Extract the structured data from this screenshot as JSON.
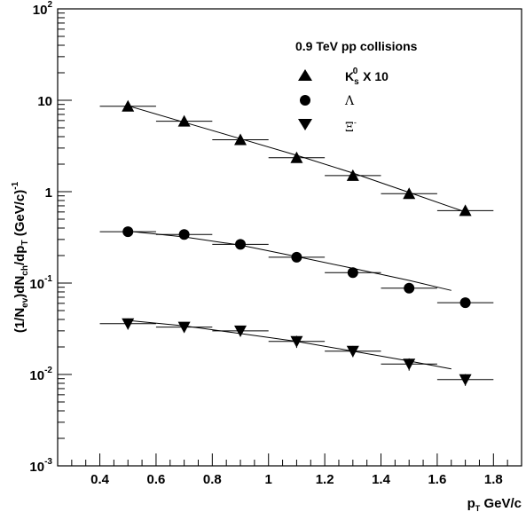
{
  "chart_data": {
    "type": "scatter",
    "title": "0.9 TeV pp collisions",
    "xlabel": "p_T GeV/c",
    "ylabel": "(1/N_ev)dN_ch/dp_T (GeV/c)^-1",
    "xlim": [
      0.25,
      1.9
    ],
    "ylim": [
      0.001,
      100
    ],
    "y_scale": "log",
    "grid": false,
    "legend_position": "top-right",
    "x_ticks": [
      0.4,
      0.6,
      0.8,
      1,
      1.2,
      1.4,
      1.6,
      1.8
    ],
    "x_tick_labels": [
      "0.4",
      "0.6",
      "0.8",
      "1",
      "1.2",
      "1.4",
      "1.6",
      "1.8"
    ],
    "y_ticks": [
      0.001,
      0.01,
      0.1,
      1,
      10,
      100
    ],
    "y_tick_labels": [
      {
        "base": "10",
        "exp": "-3"
      },
      {
        "base": "10",
        "exp": "-2"
      },
      {
        "base": "10",
        "exp": "-1"
      },
      {
        "base": "1",
        "exp": ""
      },
      {
        "base": "10",
        "exp": ""
      },
      {
        "base": "10",
        "exp": "2"
      }
    ],
    "series": [
      {
        "name": "K_s^0 X 10",
        "marker": "triangle-up",
        "x": [
          0.5,
          0.7,
          0.9,
          1.1,
          1.3,
          1.5,
          1.7
        ],
        "x_halfwidth": 0.1,
        "values": [
          8.6,
          5.9,
          3.7,
          2.35,
          1.5,
          0.95,
          0.62
        ],
        "y_err": [
          0.0,
          0.0,
          0.0,
          0.0,
          0.0,
          0.0,
          0.0
        ],
        "fit": {
          "x": [
            0.5,
            0.7,
            0.9,
            1.1,
            1.3,
            1.5,
            1.7
          ],
          "y": [
            8.7,
            5.75,
            3.8,
            2.5,
            1.6,
            0.98,
            0.6
          ]
        }
      },
      {
        "name": "Λ",
        "marker": "circle",
        "x": [
          0.5,
          0.7,
          0.9,
          1.1,
          1.3,
          1.5,
          1.7
        ],
        "x_halfwidth": 0.1,
        "values": [
          0.365,
          0.34,
          0.265,
          0.192,
          0.13,
          0.088,
          0.061
        ],
        "y_err": [
          0.0,
          0.0,
          0.0,
          0.0,
          0.0,
          0.0,
          0.0
        ],
        "fit": {
          "x": [
            0.5,
            0.7,
            0.9,
            1.1,
            1.3,
            1.5,
            1.65
          ],
          "y": [
            0.37,
            0.32,
            0.26,
            0.195,
            0.145,
            0.107,
            0.083
          ]
        }
      },
      {
        "name": "Ξ⁻",
        "marker": "triangle-down",
        "x": [
          0.5,
          0.7,
          0.9,
          1.1,
          1.3,
          1.5,
          1.7
        ],
        "x_halfwidth": 0.1,
        "values": [
          0.036,
          0.033,
          0.03,
          0.023,
          0.018,
          0.013,
          0.0088
        ],
        "y_err": [
          0.005,
          0.004,
          0.004,
          0.0035,
          0.0025,
          0.002,
          0.0013
        ],
        "fit": {
          "x": [
            0.5,
            0.7,
            0.9,
            1.1,
            1.3,
            1.5,
            1.65
          ],
          "y": [
            0.039,
            0.034,
            0.028,
            0.023,
            0.018,
            0.014,
            0.0115
          ]
        }
      }
    ]
  },
  "legend": {
    "title": "0.9 TeV pp collisions",
    "entries": [
      {
        "label": "K",
        "sub": "s",
        "sup": "0",
        "suffix": " X 10"
      },
      {
        "label": "Λ"
      },
      {
        "label": "Ξ",
        "sup": "-"
      }
    ]
  },
  "axes": {
    "y_title_parts": [
      "(1/N",
      "ev",
      ")dN",
      "ch",
      "/dp",
      "T",
      " (GeV/c)",
      "-1"
    ],
    "x_title_parts": [
      "p",
      "T",
      " GeV/c"
    ]
  }
}
